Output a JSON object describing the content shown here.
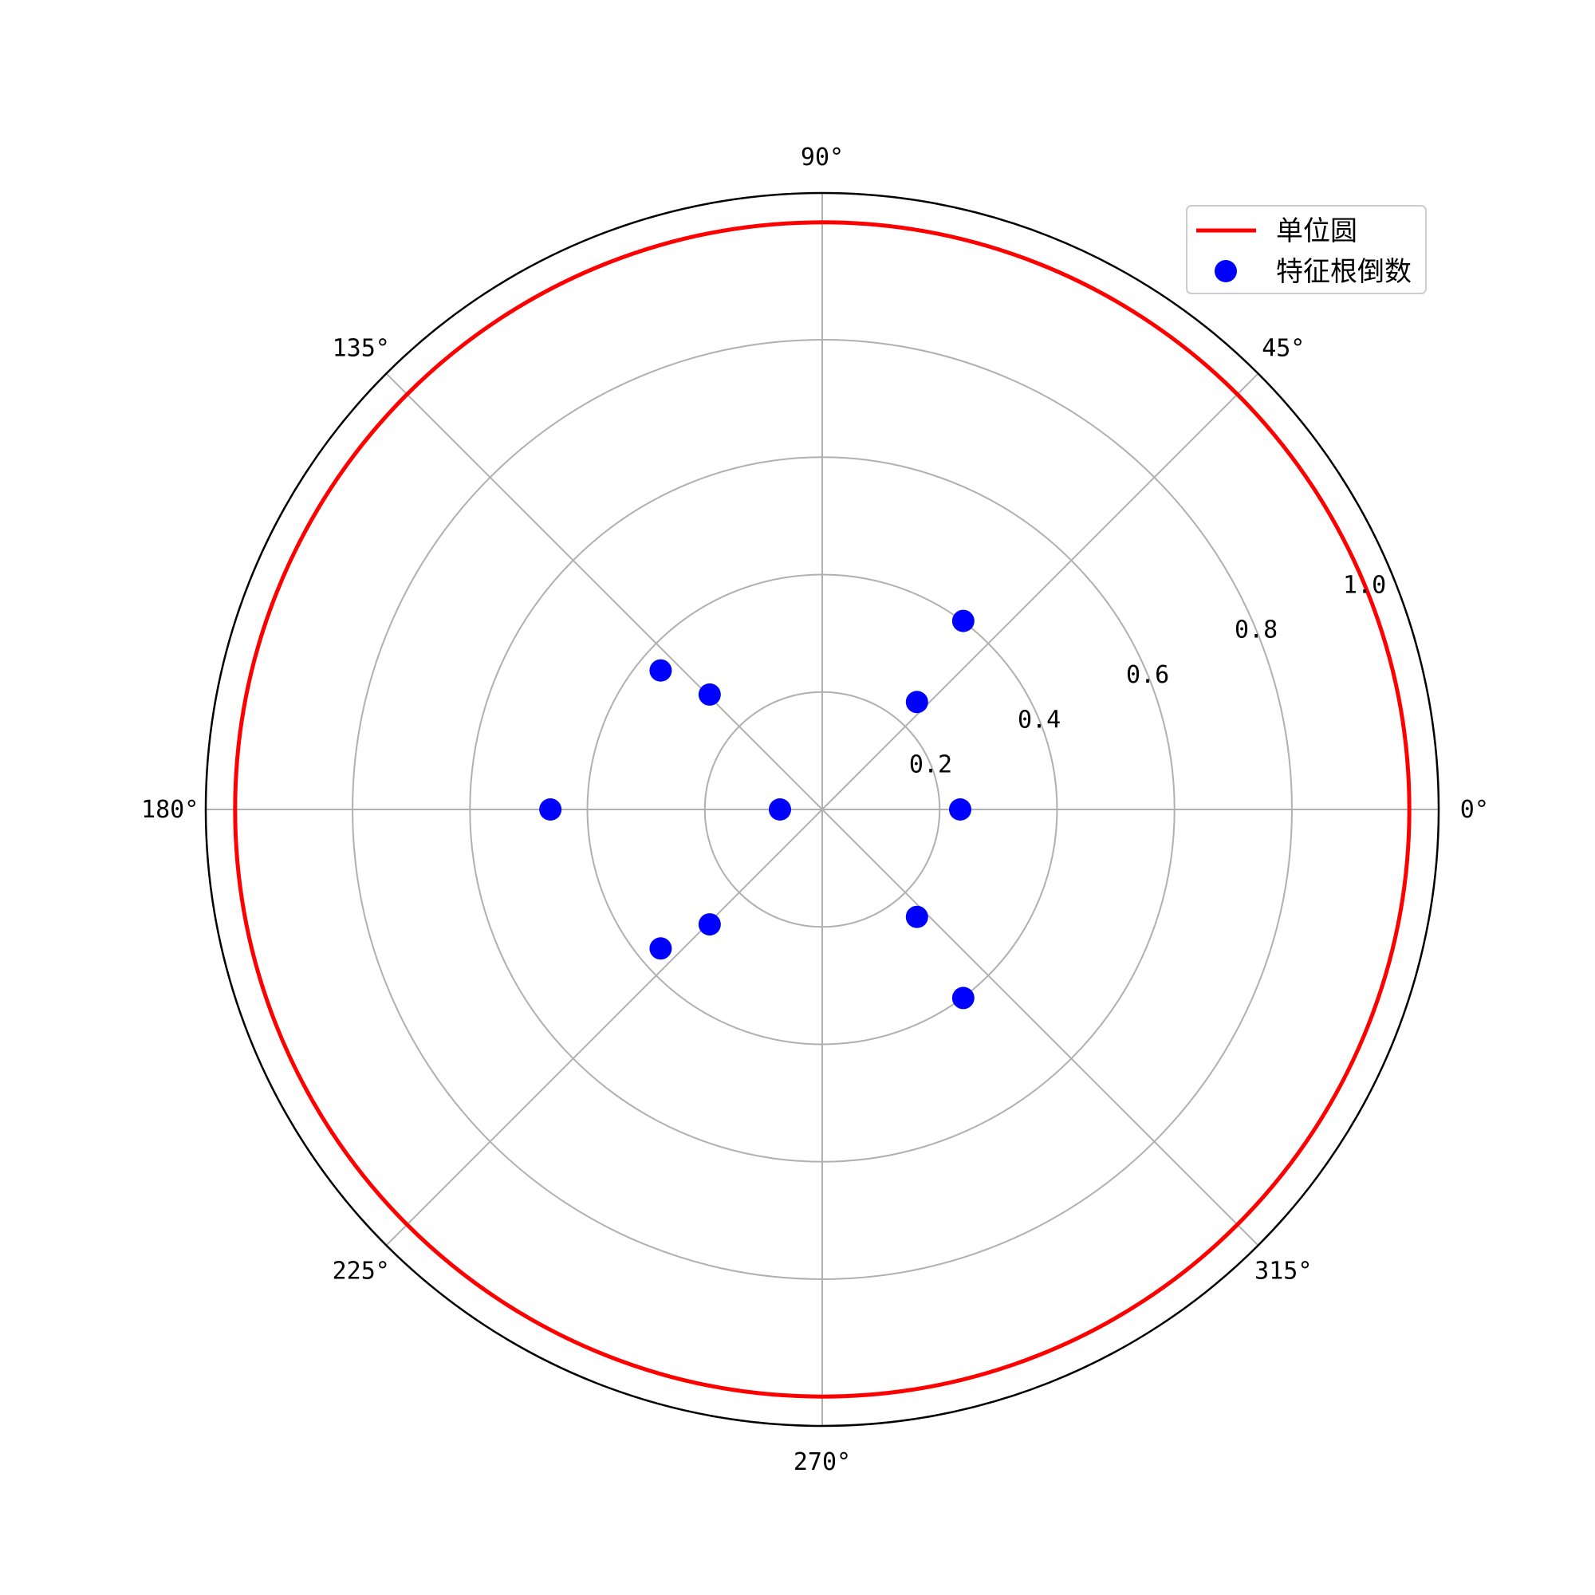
{
  "chart_data": {
    "type": "scatter",
    "projection": "polar",
    "title": "",
    "rlim": [
      0,
      1.05
    ],
    "r_ticks": [
      0.2,
      0.4,
      0.6,
      0.8,
      1.0
    ],
    "r_tick_labels": [
      "0.2",
      "0.4",
      "0.6",
      "0.8",
      "1.0"
    ],
    "r_label_angle_deg": 22.5,
    "theta_ticks_deg": [
      0,
      45,
      90,
      135,
      180,
      225,
      270,
      315
    ],
    "theta_tick_labels": [
      "0°",
      "45°",
      "90°",
      "135°",
      "180°",
      "225°",
      "270°",
      "315°"
    ],
    "grid": true,
    "legend": {
      "position": "top-right"
    },
    "series": [
      {
        "name": "单位圆",
        "kind": "line",
        "color": "#ff0000",
        "r": 1.0,
        "theta_range_deg": [
          0,
          360
        ]
      },
      {
        "name": "特征根倒数",
        "kind": "scatter",
        "color": "#0000ff",
        "points": [
          {
            "theta_deg": 0,
            "r": 0.235
          },
          {
            "theta_deg": 180,
            "r": 0.072
          },
          {
            "theta_deg": 180,
            "r": 0.463
          },
          {
            "theta_deg": 48.6,
            "r": 0.244
          },
          {
            "theta_deg": -48.6,
            "r": 0.244
          },
          {
            "theta_deg": 53.2,
            "r": 0.401
          },
          {
            "theta_deg": -53.2,
            "r": 0.401
          },
          {
            "theta_deg": 134.4,
            "r": 0.274
          },
          {
            "theta_deg": -134.4,
            "r": 0.274
          },
          {
            "theta_deg": 139.3,
            "r": 0.363
          },
          {
            "theta_deg": -139.3,
            "r": 0.363
          }
        ]
      }
    ],
    "colors": {
      "grid": "#b0b0b0",
      "spine": "#000000",
      "legend_border": "#cccccc"
    }
  }
}
